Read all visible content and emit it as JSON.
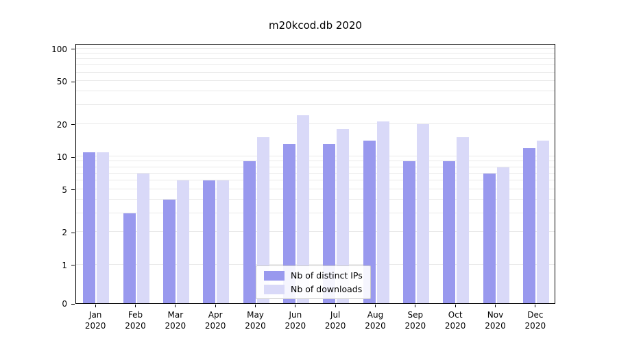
{
  "chart_data": {
    "type": "bar",
    "title": "m20kcod.db 2020",
    "categories": [
      "Jan 2020",
      "Feb 2020",
      "Mar 2020",
      "Apr 2020",
      "May 2020",
      "Jun 2020",
      "Jul 2020",
      "Aug 2020",
      "Sep 2020",
      "Oct 2020",
      "Nov 2020",
      "Dec 2020"
    ],
    "series": [
      {
        "name": "Nb of distinct IPs",
        "color": "#9999ee",
        "values": [
          11,
          3,
          4,
          6,
          9,
          13,
          13,
          14,
          9,
          9,
          7,
          12
        ]
      },
      {
        "name": "Nb of downloads",
        "color": "#d9d9f8",
        "values": [
          11,
          7,
          6,
          6,
          15,
          24,
          18,
          21,
          20,
          15,
          8,
          14
        ]
      }
    ],
    "yscale": "symlog",
    "yticks": [
      0,
      1,
      2,
      5,
      10,
      20,
      50,
      100
    ],
    "ylim": [
      0,
      100
    ],
    "grid": "horizontal",
    "legend_position": "lower center inside plot"
  }
}
